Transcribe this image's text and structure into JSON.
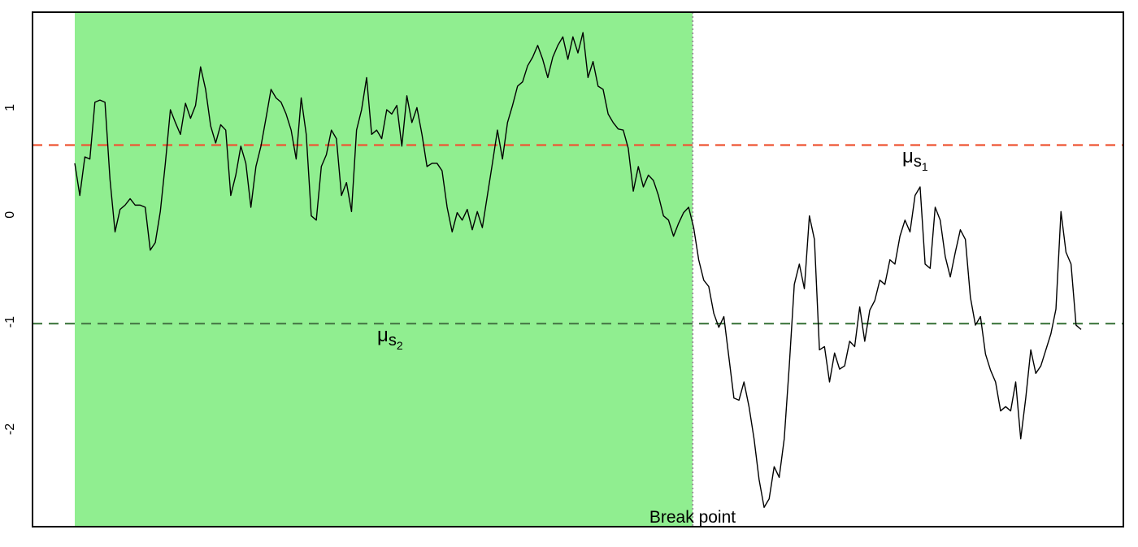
{
  "chart_data": {
    "type": "line",
    "ylim": [
      -2.91,
      1.89
    ],
    "yticks": [
      -2,
      -1,
      0,
      1
    ],
    "xlim": [
      -8.4,
      208.4
    ],
    "shade": {
      "x": [
        0,
        122.8
      ],
      "color": "#90ee90"
    },
    "breakpoint": {
      "x": 122.8,
      "label": "Break point",
      "color": "#999999"
    },
    "hlines": [
      {
        "value": 0.65,
        "color": "#ee5533",
        "symbol": "μ",
        "sub": "s",
        "subsub": "1"
      },
      {
        "value": -1.015,
        "color": "#4a7f4a",
        "symbol": "μ",
        "sub": "s",
        "subsub": "2"
      }
    ],
    "series": [
      {
        "color": "#000000",
        "values": [
          0.48,
          0.18,
          0.54,
          0.52,
          1.05,
          1.07,
          1.05,
          0.33,
          -0.16,
          0.05,
          0.09,
          0.15,
          0.09,
          0.09,
          0.07,
          -0.33,
          -0.26,
          0.03,
          0.48,
          0.98,
          0.86,
          0.75,
          1.04,
          0.9,
          1.02,
          1.38,
          1.17,
          0.83,
          0.67,
          0.84,
          0.79,
          0.18,
          0.37,
          0.64,
          0.48,
          0.07,
          0.45,
          0.64,
          0.9,
          1.17,
          1.09,
          1.05,
          0.94,
          0.79,
          0.52,
          1.09,
          0.75,
          -0.01,
          -0.05,
          0.45,
          0.56,
          0.79,
          0.71,
          0.18,
          0.3,
          0.03,
          0.79,
          0.98,
          1.28,
          0.75,
          0.79,
          0.71,
          0.98,
          0.94,
          1.02,
          0.64,
          1.11,
          0.86,
          1.0,
          0.75,
          0.45,
          0.48,
          0.48,
          0.41,
          0.07,
          -0.16,
          0.02,
          -0.05,
          0.05,
          -0.14,
          0.03,
          -0.12,
          0.18,
          0.48,
          0.79,
          0.52,
          0.86,
          1.02,
          1.2,
          1.24,
          1.39,
          1.47,
          1.58,
          1.45,
          1.28,
          1.47,
          1.58,
          1.66,
          1.45,
          1.66,
          1.51,
          1.7,
          1.28,
          1.43,
          1.2,
          1.17,
          0.94,
          0.86,
          0.8,
          0.79,
          0.62,
          0.22,
          0.45,
          0.26,
          0.37,
          0.32,
          0.18,
          -0.01,
          -0.05,
          -0.2,
          -0.08,
          0.02,
          0.07,
          -0.12,
          -0.42,
          -0.61,
          -0.67,
          -0.92,
          -1.05,
          -0.95,
          -1.33,
          -1.71,
          -1.73,
          -1.56,
          -1.79,
          -2.09,
          -2.47,
          -2.73,
          -2.65,
          -2.35,
          -2.45,
          -2.09,
          -1.41,
          -0.65,
          -0.46,
          -0.69,
          -0.01,
          -0.23,
          -1.26,
          -1.23,
          -1.56,
          -1.29,
          -1.44,
          -1.41,
          -1.18,
          -1.23,
          -0.86,
          -1.18,
          -0.89,
          -0.8,
          -0.61,
          -0.65,
          -0.42,
          -0.46,
          -0.2,
          -0.05,
          -0.16,
          0.18,
          0.26,
          -0.46,
          -0.5,
          0.07,
          -0.05,
          -0.39,
          -0.58,
          -0.35,
          -0.14,
          -0.23,
          -0.77,
          -1.03,
          -0.95,
          -1.3,
          -1.45,
          -1.56,
          -1.83,
          -1.79,
          -1.83,
          -1.56,
          -2.09,
          -1.71,
          -1.26,
          -1.48,
          -1.41,
          -1.26,
          -1.11,
          -0.88,
          0.03,
          -0.35,
          -0.46,
          -1.03,
          -1.07
        ]
      }
    ]
  }
}
